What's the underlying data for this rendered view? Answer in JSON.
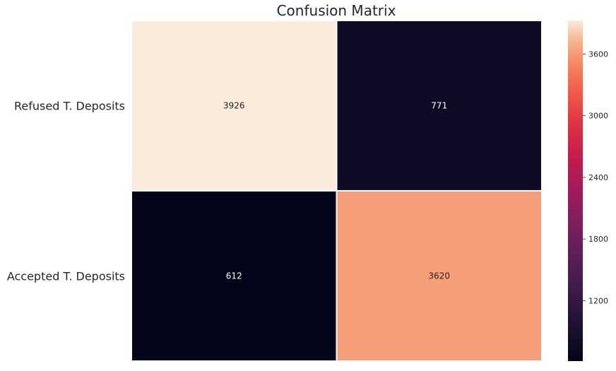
{
  "chart_data": {
    "type": "heatmap",
    "title": "Confusion Matrix",
    "row_labels": [
      "Refused T. Deposits",
      "Accepted T. Deposits"
    ],
    "column_labels": [],
    "matrix": [
      [
        3926,
        771
      ],
      [
        612,
        3620
      ]
    ],
    "colormap": "rocket",
    "colorbar": {
      "min": 612,
      "max": 3926,
      "ticks": [
        1200,
        1800,
        2400,
        3000,
        3600
      ],
      "tick_labels": [
        "1200",
        "1800",
        "2400",
        "3000",
        "3600"
      ]
    }
  }
}
